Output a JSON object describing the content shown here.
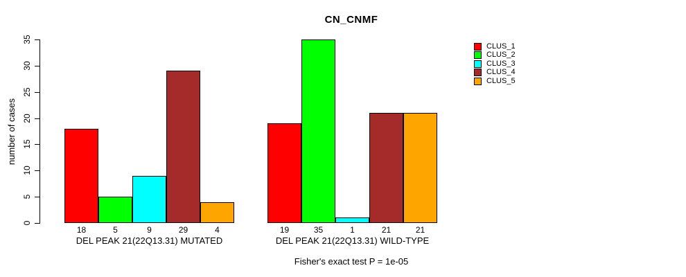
{
  "chart_data": {
    "type": "bar",
    "title": "CN_CNMF",
    "ylabel": "number of cases",
    "xlabel": "",
    "ylim": [
      0,
      35
    ],
    "yticks": [
      0,
      5,
      10,
      15,
      20,
      25,
      30,
      35
    ],
    "grid": false,
    "legend_position": "topright-outside",
    "categories": [
      "DEL PEAK 21(22Q13.31) MUTATED",
      "DEL PEAK 21(22Q13.31) WILD-TYPE"
    ],
    "series": [
      {
        "name": "CLUS_1",
        "color": "#FF0000",
        "values": [
          18,
          19
        ]
      },
      {
        "name": "CLUS_2",
        "color": "#00FF00",
        "values": [
          5,
          35
        ]
      },
      {
        "name": "CLUS_3",
        "color": "#00FFFF",
        "values": [
          9,
          1
        ]
      },
      {
        "name": "CLUS_4",
        "color": "#A52A2A",
        "values": [
          29,
          21
        ]
      },
      {
        "name": "CLUS_5",
        "color": "#FFA500",
        "values": [
          4,
          21
        ]
      }
    ],
    "bar_value_labels": [
      [
        18,
        5,
        9,
        29,
        4
      ],
      [
        19,
        35,
        1,
        21,
        21
      ]
    ],
    "annotation": "Fisher's exact test P = 1e-05",
    "axis_color": "#000000",
    "bar_border_color": "#000000",
    "background_color": "#FFFFFF"
  }
}
